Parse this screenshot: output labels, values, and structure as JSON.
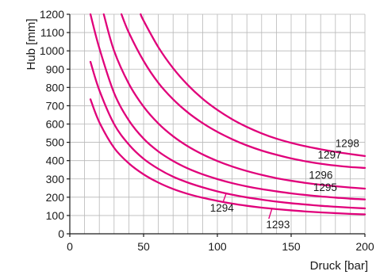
{
  "chart_data": {
    "type": "line",
    "xlabel": "Druck [bar]",
    "ylabel": "Hub [mm]",
    "xlim": [
      0,
      200
    ],
    "ylim": [
      0,
      1200
    ],
    "x_ticks": [
      0,
      50,
      100,
      150,
      200
    ],
    "y_ticks": [
      0,
      100,
      200,
      300,
      400,
      500,
      600,
      700,
      800,
      900,
      1000,
      1100,
      1200
    ],
    "grid": true,
    "color": "#e0007a",
    "series": [
      {
        "name": "1293",
        "points": [
          [
            14,
            735
          ],
          [
            20,
            610
          ],
          [
            30,
            470
          ],
          [
            40,
            385
          ],
          [
            50,
            325
          ],
          [
            60,
            280
          ],
          [
            70,
            245
          ],
          [
            80,
            218
          ],
          [
            90,
            197
          ],
          [
            100,
            180
          ],
          [
            110,
            165
          ],
          [
            120,
            153
          ],
          [
            130,
            143
          ],
          [
            140,
            135
          ],
          [
            150,
            128
          ],
          [
            160,
            122
          ],
          [
            170,
            117
          ],
          [
            180,
            113
          ],
          [
            190,
            109
          ],
          [
            200,
            106
          ]
        ]
      },
      {
        "name": "1294",
        "points": [
          [
            14,
            940
          ],
          [
            20,
            785
          ],
          [
            30,
            600
          ],
          [
            40,
            488
          ],
          [
            50,
            410
          ],
          [
            60,
            355
          ],
          [
            70,
            312
          ],
          [
            80,
            280
          ],
          [
            90,
            254
          ],
          [
            100,
            232
          ],
          [
            110,
            214
          ],
          [
            120,
            199
          ],
          [
            130,
            187
          ],
          [
            140,
            176
          ],
          [
            150,
            167
          ],
          [
            160,
            160
          ],
          [
            170,
            153
          ],
          [
            180,
            148
          ],
          [
            190,
            143
          ],
          [
            200,
            139
          ]
        ]
      },
      {
        "name": "1295",
        "points": [
          [
            14,
            1200
          ],
          [
            20,
            1015
          ],
          [
            30,
            770
          ],
          [
            40,
            620
          ],
          [
            50,
            520
          ],
          [
            60,
            450
          ],
          [
            70,
            398
          ],
          [
            80,
            357
          ],
          [
            90,
            325
          ],
          [
            100,
            299
          ],
          [
            110,
            277
          ],
          [
            120,
            259
          ],
          [
            130,
            244
          ],
          [
            140,
            232
          ],
          [
            150,
            221
          ],
          [
            160,
            212
          ],
          [
            170,
            204
          ],
          [
            180,
            198
          ],
          [
            190,
            192
          ],
          [
            200,
            188
          ]
        ]
      },
      {
        "name": "1296",
        "points": [
          [
            23,
            1200
          ],
          [
            30,
            1000
          ],
          [
            40,
            820
          ],
          [
            50,
            695
          ],
          [
            60,
            603
          ],
          [
            70,
            533
          ],
          [
            80,
            478
          ],
          [
            90,
            434
          ],
          [
            100,
            398
          ],
          [
            110,
            368
          ],
          [
            120,
            343
          ],
          [
            130,
            322
          ],
          [
            140,
            304
          ],
          [
            150,
            290
          ],
          [
            160,
            278
          ],
          [
            170,
            268
          ],
          [
            180,
            260
          ],
          [
            190,
            253
          ],
          [
            200,
            247
          ]
        ]
      },
      {
        "name": "1297",
        "points": [
          [
            35,
            1200
          ],
          [
            40,
            1100
          ],
          [
            50,
            945
          ],
          [
            60,
            825
          ],
          [
            70,
            735
          ],
          [
            80,
            663
          ],
          [
            90,
            605
          ],
          [
            100,
            557
          ],
          [
            110,
            517
          ],
          [
            120,
            483
          ],
          [
            130,
            455
          ],
          [
            140,
            432
          ],
          [
            150,
            412
          ],
          [
            160,
            396
          ],
          [
            170,
            383
          ],
          [
            180,
            373
          ],
          [
            190,
            365
          ],
          [
            200,
            360
          ]
        ]
      },
      {
        "name": "1298",
        "points": [
          [
            48,
            1200
          ],
          [
            50,
            1165
          ],
          [
            60,
            1020
          ],
          [
            70,
            905
          ],
          [
            80,
            813
          ],
          [
            90,
            738
          ],
          [
            100,
            677
          ],
          [
            110,
            626
          ],
          [
            120,
            584
          ],
          [
            130,
            549
          ],
          [
            140,
            520
          ],
          [
            150,
            497
          ],
          [
            160,
            478
          ],
          [
            170,
            462
          ],
          [
            180,
            448
          ],
          [
            190,
            436
          ],
          [
            200,
            425
          ]
        ]
      }
    ]
  }
}
